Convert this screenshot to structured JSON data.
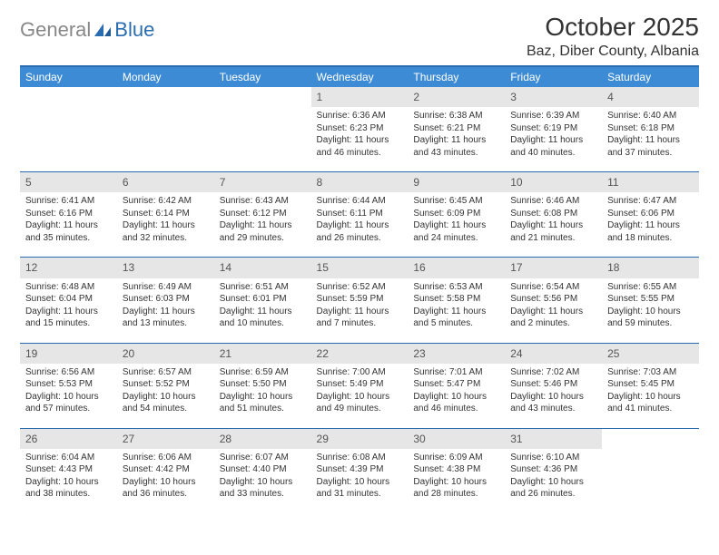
{
  "logo": {
    "text1": "General",
    "text2": "Blue"
  },
  "title": "October 2025",
  "location": "Baz, Diber County, Albania",
  "colors": {
    "header_bg": "#3d8bd4",
    "header_text": "#ffffff",
    "border": "#2a6cb0",
    "daynum_bg": "#e6e6e6",
    "text": "#333333",
    "logo_gray": "#888888",
    "logo_blue": "#2a6cb0"
  },
  "weekdays": [
    "Sunday",
    "Monday",
    "Tuesday",
    "Wednesday",
    "Thursday",
    "Friday",
    "Saturday"
  ],
  "weeks": [
    [
      null,
      null,
      null,
      {
        "n": "1",
        "sr": "6:36 AM",
        "ss": "6:23 PM",
        "dl": "11 hours and 46 minutes."
      },
      {
        "n": "2",
        "sr": "6:38 AM",
        "ss": "6:21 PM",
        "dl": "11 hours and 43 minutes."
      },
      {
        "n": "3",
        "sr": "6:39 AM",
        "ss": "6:19 PM",
        "dl": "11 hours and 40 minutes."
      },
      {
        "n": "4",
        "sr": "6:40 AM",
        "ss": "6:18 PM",
        "dl": "11 hours and 37 minutes."
      }
    ],
    [
      {
        "n": "5",
        "sr": "6:41 AM",
        "ss": "6:16 PM",
        "dl": "11 hours and 35 minutes."
      },
      {
        "n": "6",
        "sr": "6:42 AM",
        "ss": "6:14 PM",
        "dl": "11 hours and 32 minutes."
      },
      {
        "n": "7",
        "sr": "6:43 AM",
        "ss": "6:12 PM",
        "dl": "11 hours and 29 minutes."
      },
      {
        "n": "8",
        "sr": "6:44 AM",
        "ss": "6:11 PM",
        "dl": "11 hours and 26 minutes."
      },
      {
        "n": "9",
        "sr": "6:45 AM",
        "ss": "6:09 PM",
        "dl": "11 hours and 24 minutes."
      },
      {
        "n": "10",
        "sr": "6:46 AM",
        "ss": "6:08 PM",
        "dl": "11 hours and 21 minutes."
      },
      {
        "n": "11",
        "sr": "6:47 AM",
        "ss": "6:06 PM",
        "dl": "11 hours and 18 minutes."
      }
    ],
    [
      {
        "n": "12",
        "sr": "6:48 AM",
        "ss": "6:04 PM",
        "dl": "11 hours and 15 minutes."
      },
      {
        "n": "13",
        "sr": "6:49 AM",
        "ss": "6:03 PM",
        "dl": "11 hours and 13 minutes."
      },
      {
        "n": "14",
        "sr": "6:51 AM",
        "ss": "6:01 PM",
        "dl": "11 hours and 10 minutes."
      },
      {
        "n": "15",
        "sr": "6:52 AM",
        "ss": "5:59 PM",
        "dl": "11 hours and 7 minutes."
      },
      {
        "n": "16",
        "sr": "6:53 AM",
        "ss": "5:58 PM",
        "dl": "11 hours and 5 minutes."
      },
      {
        "n": "17",
        "sr": "6:54 AM",
        "ss": "5:56 PM",
        "dl": "11 hours and 2 minutes."
      },
      {
        "n": "18",
        "sr": "6:55 AM",
        "ss": "5:55 PM",
        "dl": "10 hours and 59 minutes."
      }
    ],
    [
      {
        "n": "19",
        "sr": "6:56 AM",
        "ss": "5:53 PM",
        "dl": "10 hours and 57 minutes."
      },
      {
        "n": "20",
        "sr": "6:57 AM",
        "ss": "5:52 PM",
        "dl": "10 hours and 54 minutes."
      },
      {
        "n": "21",
        "sr": "6:59 AM",
        "ss": "5:50 PM",
        "dl": "10 hours and 51 minutes."
      },
      {
        "n": "22",
        "sr": "7:00 AM",
        "ss": "5:49 PM",
        "dl": "10 hours and 49 minutes."
      },
      {
        "n": "23",
        "sr": "7:01 AM",
        "ss": "5:47 PM",
        "dl": "10 hours and 46 minutes."
      },
      {
        "n": "24",
        "sr": "7:02 AM",
        "ss": "5:46 PM",
        "dl": "10 hours and 43 minutes."
      },
      {
        "n": "25",
        "sr": "7:03 AM",
        "ss": "5:45 PM",
        "dl": "10 hours and 41 minutes."
      }
    ],
    [
      {
        "n": "26",
        "sr": "6:04 AM",
        "ss": "4:43 PM",
        "dl": "10 hours and 38 minutes."
      },
      {
        "n": "27",
        "sr": "6:06 AM",
        "ss": "4:42 PM",
        "dl": "10 hours and 36 minutes."
      },
      {
        "n": "28",
        "sr": "6:07 AM",
        "ss": "4:40 PM",
        "dl": "10 hours and 33 minutes."
      },
      {
        "n": "29",
        "sr": "6:08 AM",
        "ss": "4:39 PM",
        "dl": "10 hours and 31 minutes."
      },
      {
        "n": "30",
        "sr": "6:09 AM",
        "ss": "4:38 PM",
        "dl": "10 hours and 28 minutes."
      },
      {
        "n": "31",
        "sr": "6:10 AM",
        "ss": "4:36 PM",
        "dl": "10 hours and 26 minutes."
      },
      null
    ]
  ],
  "labels": {
    "sunrise": "Sunrise:",
    "sunset": "Sunset:",
    "daylight": "Daylight:"
  }
}
